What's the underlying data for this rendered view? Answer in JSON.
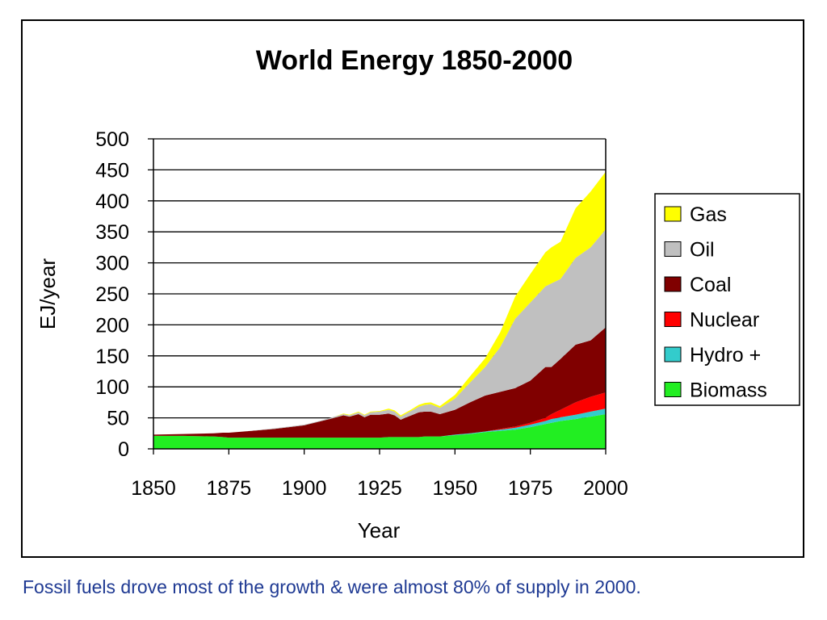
{
  "caption": "Fossil fuels drove most of the growth & were almost 80% of supply in 2000.",
  "chart_data": {
    "type": "area",
    "stacked": true,
    "title": "World Energy 1850-2000",
    "xlabel": "Year",
    "ylabel": "EJ/year",
    "xlim": [
      1850,
      2000
    ],
    "ylim": [
      0,
      500
    ],
    "xticks": [
      1850,
      1875,
      1900,
      1925,
      1950,
      1975,
      2000
    ],
    "yticks": [
      0,
      50,
      100,
      150,
      200,
      250,
      300,
      350,
      400,
      450,
      500
    ],
    "grid": "horizontal",
    "legend_position": "right",
    "x": [
      1850,
      1860,
      1870,
      1873,
      1875,
      1880,
      1890,
      1900,
      1905,
      1910,
      1913,
      1915,
      1918,
      1920,
      1922,
      1925,
      1928,
      1930,
      1932,
      1935,
      1938,
      1940,
      1942,
      1945,
      1950,
      1955,
      1960,
      1965,
      1970,
      1975,
      1980,
      1982,
      1985,
      1990,
      1995,
      2000
    ],
    "series": [
      {
        "name": "Biomass",
        "color": "#22ee22",
        "values": [
          21,
          21,
          20,
          19,
          18,
          18,
          18,
          18,
          18,
          18,
          18,
          18,
          18,
          18,
          18,
          18,
          19,
          19,
          19,
          19,
          19,
          20,
          20,
          20,
          22,
          24,
          27,
          29,
          31,
          35,
          40,
          42,
          45,
          48,
          52,
          56
        ]
      },
      {
        "name": "Hydro +",
        "color": "#33cccc",
        "values": [
          0,
          0,
          0,
          0,
          0,
          0,
          0,
          0,
          0,
          0,
          0,
          0,
          0,
          0,
          0,
          0,
          0,
          0,
          0,
          0,
          0,
          0,
          0,
          0,
          1,
          1,
          1,
          2,
          3,
          4,
          5,
          6,
          6,
          7,
          8,
          9
        ]
      },
      {
        "name": "Nuclear",
        "color": "#ff0000",
        "values": [
          0,
          0,
          0,
          0,
          0,
          0,
          0,
          0,
          0,
          0,
          0,
          0,
          0,
          0,
          0,
          0,
          0,
          0,
          0,
          0,
          0,
          0,
          0,
          0,
          0,
          0,
          0,
          1,
          2,
          3,
          5,
          8,
          12,
          20,
          24,
          26
        ]
      },
      {
        "name": "Coal",
        "color": "#800000",
        "values": [
          2,
          3,
          5,
          7,
          8,
          10,
          14,
          20,
          26,
          32,
          36,
          34,
          38,
          33,
          37,
          37,
          38,
          35,
          28,
          34,
          40,
          40,
          40,
          36,
          40,
          50,
          58,
          60,
          62,
          68,
          82,
          76,
          82,
          93,
          91,
          105
        ]
      },
      {
        "name": "Oil",
        "color": "#c0c0c0",
        "values": [
          0,
          0,
          0,
          0,
          0,
          0,
          1,
          1,
          1,
          2,
          2,
          2,
          3,
          3,
          4,
          5,
          6,
          6,
          5,
          7,
          9,
          11,
          12,
          10,
          18,
          32,
          46,
          72,
          112,
          126,
          130,
          135,
          129,
          140,
          150,
          158
        ]
      },
      {
        "name": "Gas",
        "color": "#ffff00",
        "values": [
          0,
          0,
          0,
          0,
          0,
          0,
          0,
          0,
          0,
          0,
          1,
          1,
          1,
          1,
          1,
          1,
          2,
          2,
          2,
          2,
          3,
          3,
          3,
          3,
          6,
          10,
          14,
          24,
          36,
          46,
          55,
          58,
          60,
          80,
          90,
          93
        ]
      }
    ]
  }
}
